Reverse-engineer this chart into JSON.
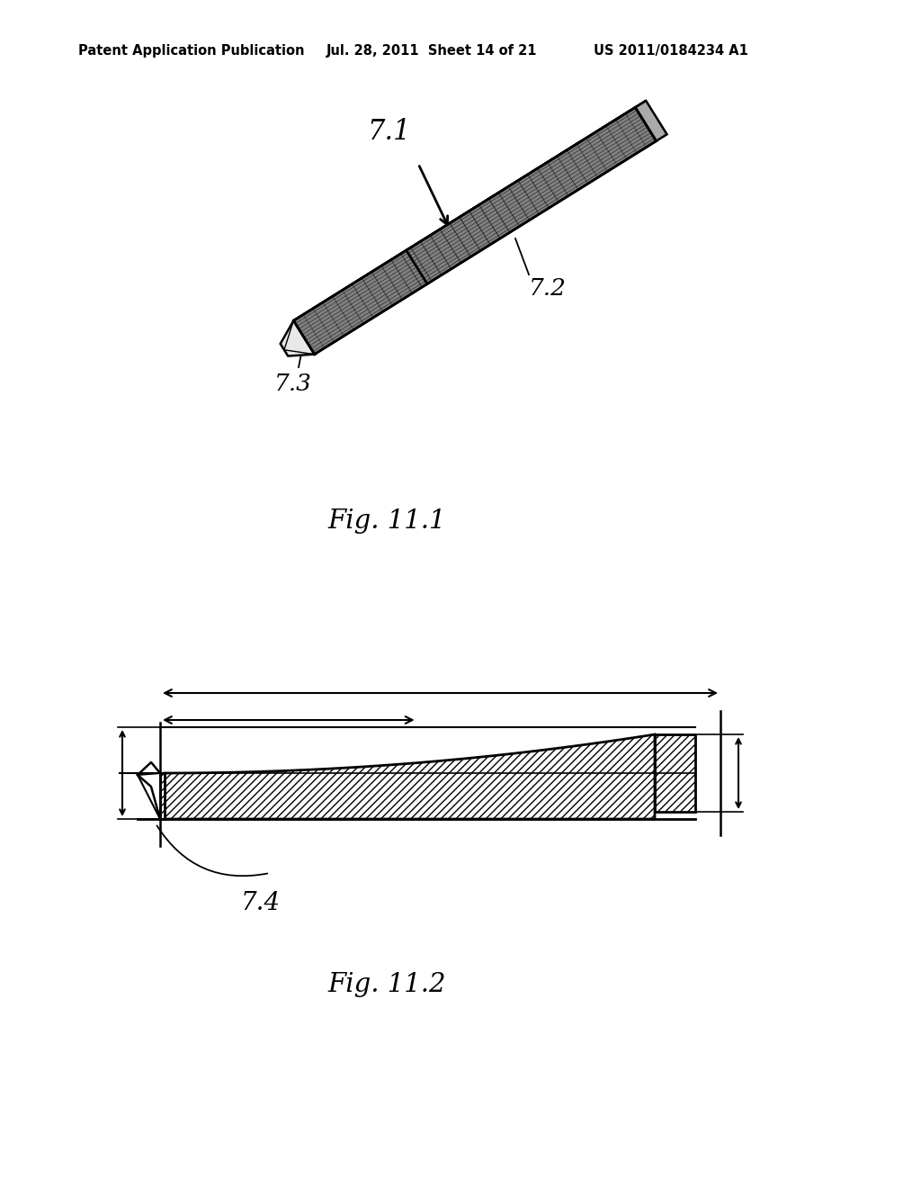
{
  "background_color": "#ffffff",
  "header_left": "Patent Application Publication",
  "header_center": "Jul. 28, 2011  Sheet 14 of 21",
  "header_right": "US 2011/0184234 A1",
  "fig1_label": "Fig. 11.1",
  "fig2_label": "Fig. 11.2",
  "label_71": "7.1",
  "label_72": "7.2",
  "label_73": "7.3",
  "label_74": "7.4",
  "line_color": "#000000",
  "hatch_color": "#000000",
  "fill_dark": "#555555",
  "fill_mid": "#888888",
  "fill_light": "#cccccc"
}
